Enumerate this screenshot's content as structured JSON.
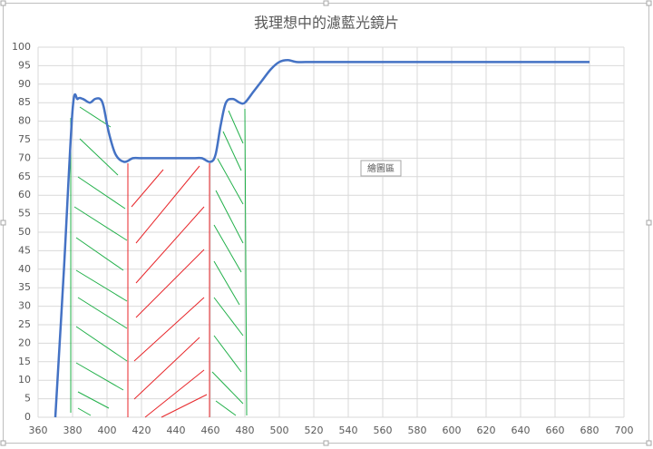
{
  "chart_data": {
    "type": "line",
    "title": "我理想中的濾藍光鏡片",
    "x": [
      370,
      375,
      380,
      383,
      386,
      390,
      393,
      396,
      398,
      401,
      405,
      410,
      415,
      420,
      430,
      440,
      450,
      455,
      460,
      463,
      466,
      469,
      473,
      477,
      480,
      485,
      490,
      495,
      500,
      505,
      510,
      520,
      540,
      600,
      680
    ],
    "values": [
      0,
      40,
      83,
      86,
      86,
      85,
      86,
      86,
      84,
      77,
      71,
      69,
      70,
      70,
      70,
      70,
      70,
      70,
      69,
      71,
      79,
      85,
      86,
      85,
      85,
      88,
      91,
      94,
      96,
      96.5,
      96,
      96,
      96,
      96,
      96
    ],
    "color": "#4472c4",
    "xlim": [
      360,
      700
    ],
    "xticks": [
      360,
      380,
      400,
      420,
      440,
      460,
      480,
      500,
      520,
      540,
      560,
      580,
      600,
      620,
      640,
      660,
      680,
      700
    ],
    "ylim": [
      0,
      100
    ],
    "yticks": [
      0,
      5,
      10,
      15,
      20,
      25,
      30,
      35,
      40,
      45,
      50,
      55,
      60,
      65,
      70,
      75,
      80,
      85,
      90,
      95,
      100
    ],
    "grid": true
  },
  "tooltip": "繪圖區"
}
